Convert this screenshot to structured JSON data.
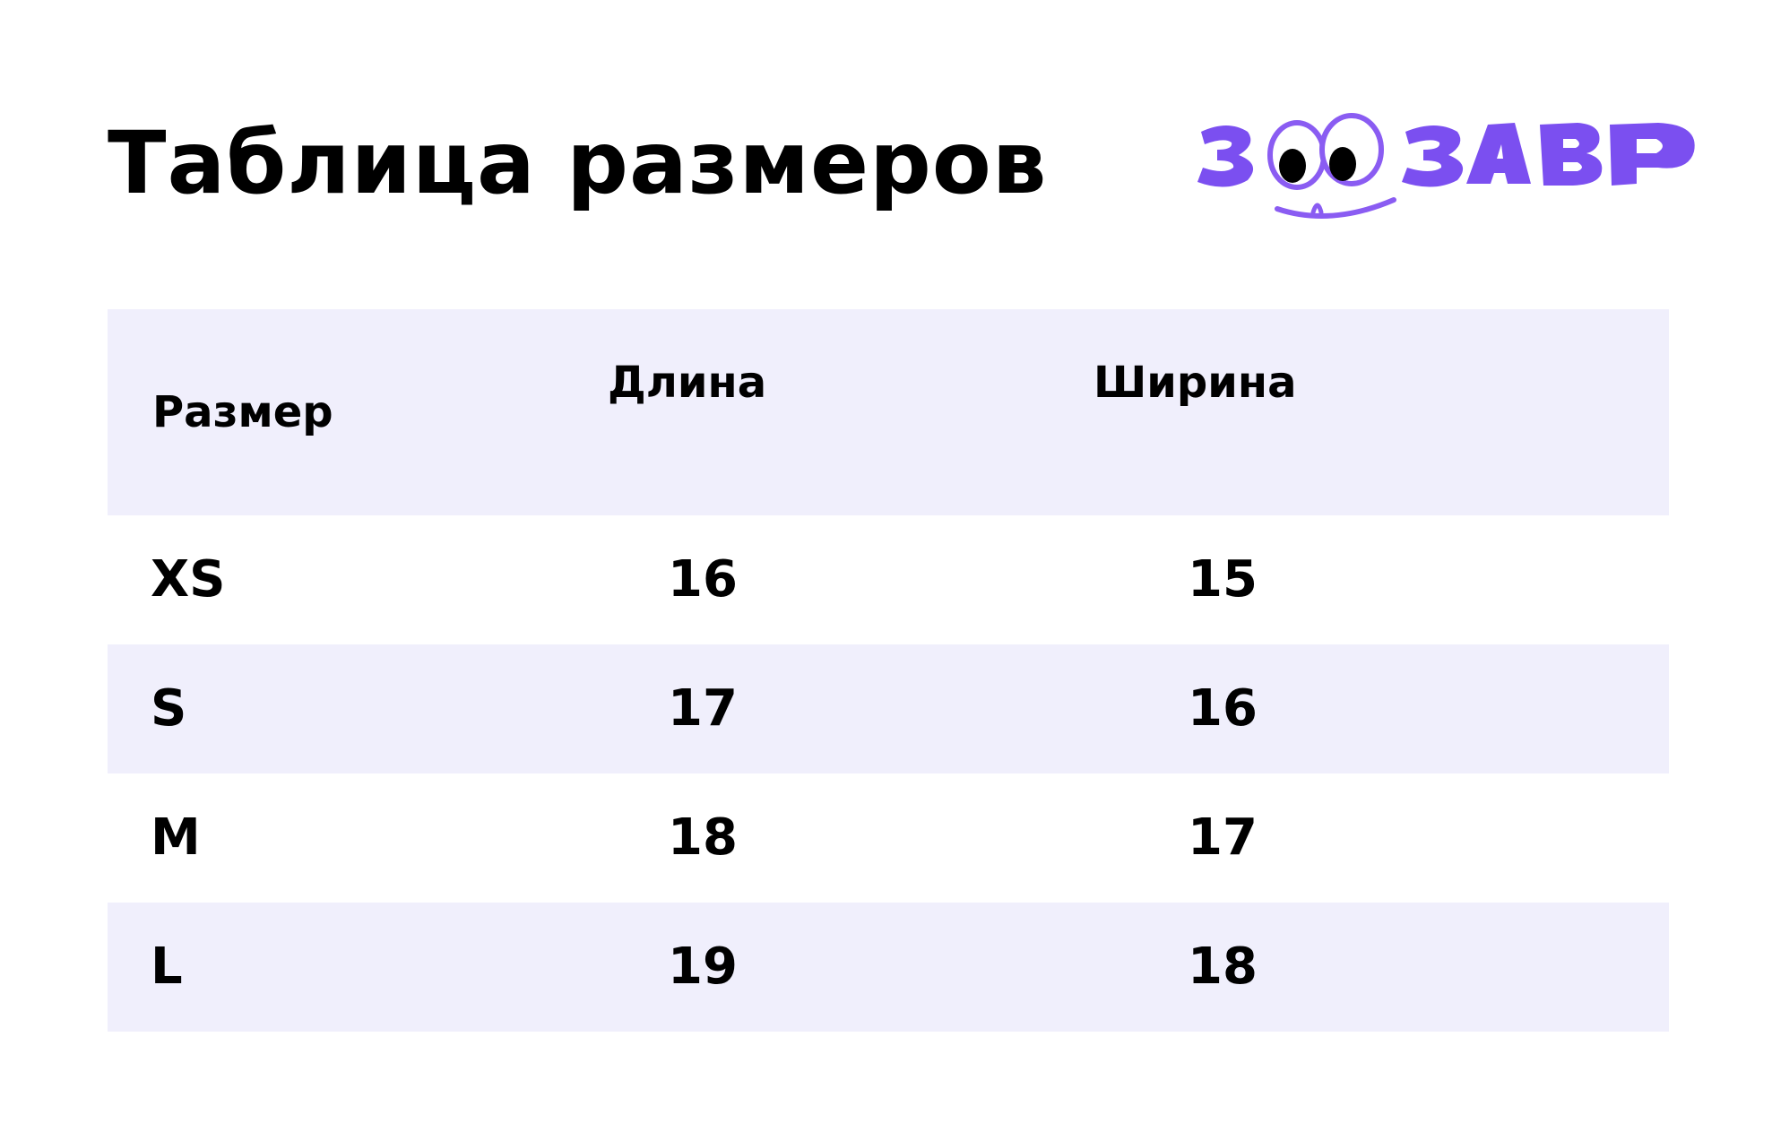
{
  "title": "Таблица размеров",
  "brand": {
    "name": "ЗООЗАВР",
    "colors": {
      "primary": "#7b4ff0",
      "eye_outline": "#8a5cf2",
      "pupil": "#000000"
    }
  },
  "colors": {
    "row_shade": "#f0effc",
    "background": "#ffffff",
    "text": "#000000"
  },
  "table": {
    "headers": {
      "size": "Размер",
      "length": "Длина",
      "width": "Ширина"
    },
    "rows": [
      {
        "size": "XS",
        "length": "16",
        "width": "15"
      },
      {
        "size": "S",
        "length": "17",
        "width": "16"
      },
      {
        "size": "M",
        "length": "18",
        "width": "17"
      },
      {
        "size": "L",
        "length": "19",
        "width": "18"
      }
    ]
  }
}
